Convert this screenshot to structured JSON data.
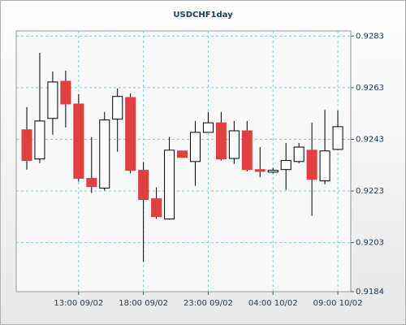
{
  "chart_data": {
    "type": "candlestick",
    "title": "USDCHF1day",
    "categories": [
      null,
      null,
      null,
      null,
      "13:00 09/02",
      null,
      null,
      null,
      null,
      "18:00 09/02",
      null,
      null,
      null,
      null,
      "23:00 09/02",
      null,
      null,
      null,
      null,
      "04:00 10/02",
      null,
      null,
      null,
      null,
      "09:00 10/02"
    ],
    "open": [
      0.92467,
      0.92354,
      0.92511,
      0.92655,
      0.92567,
      0.92279,
      0.92241,
      0.92508,
      0.92592,
      0.9231,
      0.922,
      0.92122,
      0.92385,
      0.92344,
      0.92457,
      0.92494,
      0.92356,
      0.92463,
      0.92313,
      0.92303,
      0.92313,
      0.92344,
      0.92388,
      0.92269,
      0.92391
    ],
    "high": [
      0.92555,
      0.92765,
      0.92693,
      0.92696,
      0.92605,
      0.92439,
      0.92536,
      0.92627,
      0.92608,
      0.92342,
      0.92244,
      0.92439,
      0.92385,
      0.92501,
      0.92536,
      0.92536,
      0.92501,
      0.92501,
      0.924,
      0.92319,
      0.92416,
      0.92416,
      0.92494,
      0.92544,
      0.92541
    ],
    "low": [
      0.92313,
      0.92338,
      0.92448,
      0.92476,
      0.92266,
      0.92222,
      0.92232,
      0.92382,
      0.92298,
      0.91956,
      0.92122,
      0.92119,
      0.9236,
      0.9225,
      0.92457,
      0.92348,
      0.92335,
      0.92306,
      0.92284,
      0.92298,
      0.92234,
      0.92338,
      0.92134,
      0.92256,
      0.92388
    ],
    "close": [
      0.92348,
      0.92501,
      0.92652,
      0.92567,
      0.92279,
      0.92247,
      0.92505,
      0.92596,
      0.9231,
      0.92197,
      0.92131,
      0.92388,
      0.9236,
      0.92457,
      0.92494,
      0.92354,
      0.92463,
      0.92313,
      0.92306,
      0.9231,
      0.92348,
      0.924,
      0.92275,
      0.92385,
      0.92479
    ],
    "up_color": "#ffffff",
    "down_color": "#e04040",
    "ylim": [
      0.9184,
      0.9285
    ],
    "yticks": [
      0.9184,
      0.9203,
      0.9223,
      0.9243,
      0.9263,
      0.9283
    ],
    "grid": true
  }
}
